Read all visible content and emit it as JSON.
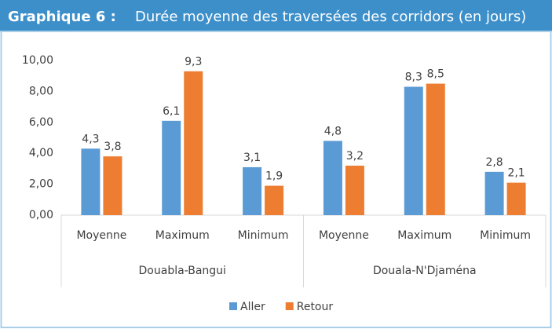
{
  "chart_data": {
    "type": "bar",
    "title_number": "Graphique 6 :",
    "title": "Durée moyenne des traversées des corridors (en jours)",
    "groups": [
      "Douabla-Bangui",
      "Douala-N'Djaména"
    ],
    "categories": [
      "Moyenne",
      "Maximum",
      "Minimum",
      "Moyenne",
      "Maximum",
      "Minimum"
    ],
    "series": [
      {
        "name": "Aller",
        "color": "#5b9bd5",
        "values": [
          4.3,
          6.1,
          3.1,
          4.8,
          8.3,
          2.8
        ],
        "value_labels": [
          "4,3",
          "6,1",
          "3,1",
          "4,8",
          "8,3",
          "2,8"
        ]
      },
      {
        "name": "Retour",
        "color": "#ed7d31",
        "values": [
          3.8,
          9.3,
          1.9,
          3.2,
          8.5,
          2.1
        ],
        "value_labels": [
          "3,8",
          "9,3",
          "1,9",
          "3,2",
          "8,5",
          "2,1"
        ]
      }
    ],
    "ylim": [
      0,
      10
    ],
    "yticks": [
      {
        "value": 0,
        "label": "0,00"
      },
      {
        "value": 2,
        "label": "2,00"
      },
      {
        "value": 4,
        "label": "4,00"
      },
      {
        "value": 6,
        "label": "6,00"
      },
      {
        "value": 8,
        "label": "8,00"
      },
      {
        "value": 10,
        "label": "10,00"
      }
    ],
    "grid": false,
    "legend": "bottom"
  }
}
